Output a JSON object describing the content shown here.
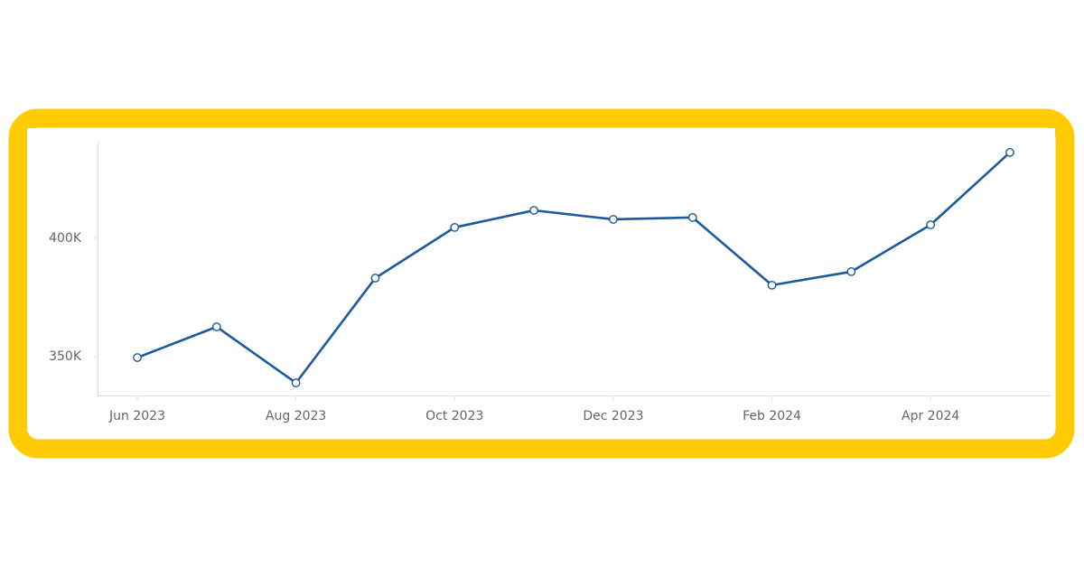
{
  "chart_data": {
    "type": "line",
    "categories": [
      "Jun 2023",
      null,
      "Aug 2023",
      null,
      "Oct 2023",
      null,
      "Dec 2023",
      null,
      "Feb 2024",
      null,
      "Apr 2024",
      null
    ],
    "series": [
      {
        "color": "#1b5b9d",
        "values": [
          349600,
          362600,
          338900,
          383200,
          404600,
          411800,
          408000,
          408800,
          380200,
          385900,
          405700,
          436300
        ]
      }
    ],
    "ylim": [
      333600,
      440800
    ],
    "yticks": [
      {
        "value": 350000,
        "label": "350K"
      },
      {
        "value": 400000,
        "label": "400K"
      }
    ],
    "grid": false,
    "markers": true
  }
}
